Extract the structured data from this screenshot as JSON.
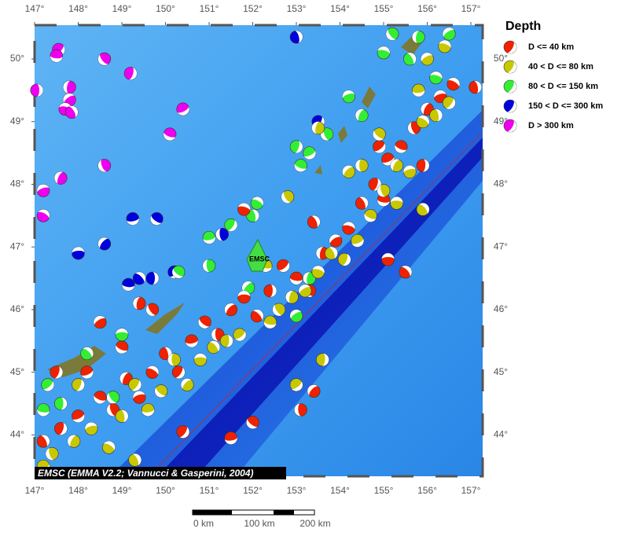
{
  "map": {
    "lon_range": [
      147,
      157.27
    ],
    "lat_range": [
      43.34,
      50.54
    ],
    "lon_ticks": [
      {
        "value": 147,
        "label": "147°"
      },
      {
        "value": 148,
        "label": "148°"
      },
      {
        "value": 149,
        "label": "149°"
      },
      {
        "value": 150,
        "label": "150°"
      },
      {
        "value": 151,
        "label": "151°"
      },
      {
        "value": 152,
        "label": "152°"
      },
      {
        "value": 153,
        "label": "153°"
      },
      {
        "value": 154,
        "label": "154°"
      },
      {
        "value": 155,
        "label": "155°"
      },
      {
        "value": 156,
        "label": "156°"
      },
      {
        "value": 157,
        "label": "157°"
      }
    ],
    "lat_ticks": [
      {
        "value": 44,
        "label": "44°"
      },
      {
        "value": 45,
        "label": "45°"
      },
      {
        "value": 46,
        "label": "46°"
      },
      {
        "value": 47,
        "label": "47°"
      },
      {
        "value": 48,
        "label": "48°"
      },
      {
        "value": 49,
        "label": "49°"
      },
      {
        "value": 50,
        "label": "50°"
      }
    ],
    "legend": {
      "title": "Depth",
      "entries": [
        {
          "label": "D <= 40 km",
          "color": "#ee2200"
        },
        {
          "label": "40 < D <= 80 km",
          "color": "#c8c800"
        },
        {
          "label": "80 < D <= 150 km",
          "color": "#33ee33"
        },
        {
          "label": "150 < D <= 300 km",
          "color": "#0000dd"
        },
        {
          "label": "D > 300 km",
          "color": "#ee00ee"
        }
      ]
    },
    "epicenter": {
      "label": "EMSC",
      "lon": 152.2,
      "lat": 46.95
    },
    "attribution": "EMSC (EMMA V2.2; Vannucci & Gasperini, 2004)",
    "scale_bar": {
      "labels": [
        "0 km",
        "100 km",
        "200 km"
      ]
    },
    "events": [
      [
        147.05,
        49.5,
        4
      ],
      [
        147.55,
        50.15,
        4
      ],
      [
        147.5,
        50.05,
        4
      ],
      [
        148.6,
        50.0,
        4
      ],
      [
        147.8,
        49.55,
        4
      ],
      [
        147.8,
        49.35,
        4
      ],
      [
        147.7,
        49.2,
        4
      ],
      [
        147.85,
        49.15,
        4
      ],
      [
        149.2,
        49.77,
        4
      ],
      [
        150.4,
        49.2,
        4
      ],
      [
        150.1,
        48.8,
        4
      ],
      [
        148.6,
        48.3,
        4
      ],
      [
        147.6,
        48.1,
        4
      ],
      [
        147.2,
        47.9,
        4
      ],
      [
        147.2,
        47.5,
        4
      ],
      [
        153.0,
        50.35,
        3
      ],
      [
        153.5,
        49.0,
        3
      ],
      [
        149.25,
        47.45,
        3
      ],
      [
        149.8,
        47.45,
        3
      ],
      [
        151.3,
        47.2,
        3
      ],
      [
        148.6,
        47.05,
        3
      ],
      [
        148.0,
        46.9,
        3
      ],
      [
        149.4,
        46.5,
        3
      ],
      [
        149.7,
        46.5,
        3
      ],
      [
        150.2,
        46.6,
        3
      ],
      [
        149.15,
        46.4,
        3
      ],
      [
        155.2,
        50.4,
        2
      ],
      [
        155.8,
        50.35,
        2
      ],
      [
        156.5,
        50.4,
        2
      ],
      [
        155.0,
        50.1,
        2
      ],
      [
        155.6,
        50.0,
        2
      ],
      [
        153.0,
        48.6,
        2
      ],
      [
        153.3,
        48.5,
        2
      ],
      [
        153.1,
        48.3,
        2
      ],
      [
        153.7,
        48.8,
        2
      ],
      [
        154.5,
        49.1,
        2
      ],
      [
        154.2,
        49.4,
        2
      ],
      [
        152.1,
        47.7,
        2
      ],
      [
        152.0,
        47.5,
        2
      ],
      [
        151.5,
        47.35,
        2
      ],
      [
        151.0,
        47.15,
        2
      ],
      [
        150.3,
        46.6,
        2
      ],
      [
        151.0,
        46.7,
        2
      ],
      [
        151.9,
        46.35,
        2
      ],
      [
        149.0,
        45.6,
        2
      ],
      [
        148.2,
        45.3,
        2
      ],
      [
        147.6,
        44.5,
        2
      ],
      [
        147.3,
        44.8,
        2
      ],
      [
        147.2,
        44.4,
        2
      ],
      [
        148.8,
        44.6,
        2
      ],
      [
        153.3,
        46.5,
        2
      ],
      [
        153.0,
        45.9,
        2
      ],
      [
        156.2,
        49.7,
        2
      ],
      [
        147.2,
        43.9,
        0
      ],
      [
        147.6,
        44.1,
        0
      ],
      [
        148.0,
        44.3,
        0
      ],
      [
        148.5,
        44.6,
        0
      ],
      [
        148.8,
        44.4,
        0
      ],
      [
        149.1,
        44.9,
        0
      ],
      [
        149.4,
        44.6,
        0
      ],
      [
        149.7,
        45.0,
        0
      ],
      [
        150.0,
        45.3,
        0
      ],
      [
        150.3,
        45.0,
        0
      ],
      [
        150.6,
        45.5,
        0
      ],
      [
        150.9,
        45.8,
        0
      ],
      [
        151.2,
        45.6,
        0
      ],
      [
        151.5,
        46.0,
        0
      ],
      [
        151.8,
        46.2,
        0
      ],
      [
        152.1,
        45.9,
        0
      ],
      [
        152.4,
        46.3,
        0
      ],
      [
        152.7,
        46.7,
        0
      ],
      [
        153.0,
        46.5,
        0
      ],
      [
        153.3,
        46.3,
        0
      ],
      [
        153.6,
        46.9,
        0
      ],
      [
        153.9,
        47.1,
        0
      ],
      [
        154.2,
        47.3,
        0
      ],
      [
        154.5,
        47.7,
        0
      ],
      [
        154.8,
        48.0,
        0
      ],
      [
        155.1,
        48.4,
        0
      ],
      [
        155.4,
        48.6,
        0
      ],
      [
        155.7,
        48.9,
        0
      ],
      [
        156.0,
        49.2,
        0
      ],
      [
        156.3,
        49.4,
        0
      ],
      [
        156.6,
        49.6,
        0
      ],
      [
        157.1,
        49.55,
        0
      ],
      [
        150.4,
        44.05,
        0
      ],
      [
        151.5,
        43.95,
        0
      ],
      [
        152.0,
        44.2,
        0
      ],
      [
        153.1,
        44.4,
        0
      ],
      [
        153.4,
        44.7,
        0
      ],
      [
        155.1,
        46.8,
        0
      ],
      [
        155.5,
        46.6,
        0
      ],
      [
        155.9,
        48.3,
        0
      ],
      [
        154.9,
        48.6,
        0
      ],
      [
        155.0,
        47.75,
        0
      ],
      [
        149.7,
        46.0,
        0
      ],
      [
        149.4,
        46.1,
        0
      ],
      [
        148.5,
        45.8,
        0
      ],
      [
        151.8,
        47.6,
        0
      ],
      [
        153.4,
        47.4,
        0
      ],
      [
        147.5,
        45.0,
        0
      ],
      [
        148.2,
        45.0,
        0
      ],
      [
        149.0,
        45.4,
        0
      ],
      [
        147.4,
        43.7,
        1
      ],
      [
        147.9,
        43.9,
        1
      ],
      [
        148.3,
        44.1,
        1
      ],
      [
        148.7,
        43.8,
        1
      ],
      [
        149.0,
        44.3,
        1
      ],
      [
        149.3,
        44.8,
        1
      ],
      [
        149.6,
        44.4,
        1
      ],
      [
        149.9,
        44.7,
        1
      ],
      [
        150.2,
        45.2,
        1
      ],
      [
        150.5,
        44.8,
        1
      ],
      [
        150.8,
        45.2,
        1
      ],
      [
        151.1,
        45.4,
        1
      ],
      [
        151.4,
        45.5,
        1
      ],
      [
        151.7,
        45.6,
        1
      ],
      [
        152.4,
        45.8,
        1
      ],
      [
        152.6,
        46.0,
        1
      ],
      [
        152.9,
        46.2,
        1
      ],
      [
        153.2,
        46.3,
        1
      ],
      [
        153.5,
        46.6,
        1
      ],
      [
        153.8,
        46.9,
        1
      ],
      [
        154.1,
        46.8,
        1
      ],
      [
        154.4,
        47.1,
        1
      ],
      [
        154.7,
        47.5,
        1
      ],
      [
        155.0,
        47.9,
        1
      ],
      [
        155.3,
        48.3,
        1
      ],
      [
        155.6,
        48.2,
        1
      ],
      [
        155.9,
        49.0,
        1
      ],
      [
        156.2,
        49.1,
        1
      ],
      [
        156.5,
        49.3,
        1
      ],
      [
        155.8,
        49.5,
        1
      ],
      [
        154.9,
        48.8,
        1
      ],
      [
        154.5,
        48.3,
        1
      ],
      [
        154.2,
        48.2,
        1
      ],
      [
        155.3,
        47.7,
        1
      ],
      [
        155.9,
        47.6,
        1
      ],
      [
        153.6,
        45.2,
        1
      ],
      [
        153.0,
        44.8,
        1
      ],
      [
        152.3,
        46.7,
        1
      ],
      [
        152.8,
        47.8,
        1
      ],
      [
        153.5,
        48.9,
        1
      ],
      [
        156.0,
        50.0,
        1
      ],
      [
        156.4,
        50.2,
        1
      ],
      [
        149.3,
        43.6,
        1
      ],
      [
        148.0,
        44.8,
        1
      ],
      [
        147.2,
        43.5,
        1
      ]
    ]
  }
}
